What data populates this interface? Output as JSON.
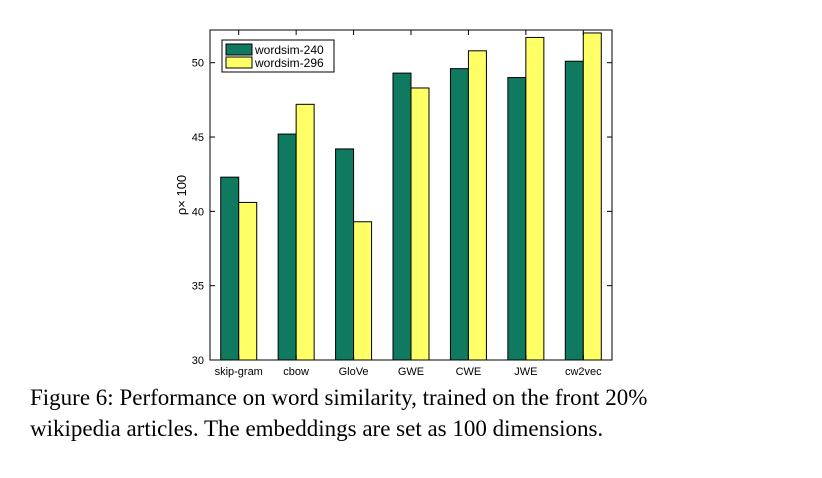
{
  "chart_data": {
    "type": "bar",
    "categories": [
      "skip-gram",
      "cbow",
      "GloVe",
      "GWE",
      "CWE",
      "JWE",
      "cw2vec"
    ],
    "series": [
      {
        "name": "wordsim-240",
        "color": "#0f7a60",
        "values": [
          42.3,
          45.2,
          44.2,
          49.3,
          49.6,
          49.0,
          50.1
        ]
      },
      {
        "name": "wordsim-296",
        "color": "#ffff66",
        "values": [
          40.6,
          47.2,
          39.3,
          48.3,
          50.8,
          51.7,
          52.0
        ]
      }
    ],
    "ylabel": "ρ× 100",
    "ylim": [
      30,
      52.2
    ],
    "yticks": [
      30,
      35,
      40,
      45,
      50
    ],
    "grid": false,
    "legend_position": "top-left"
  },
  "caption": {
    "line1": "Figure 6: Performance on word similarity, trained on the front 20%",
    "line2": "wikipedia articles. The embeddings are set as 100 dimensions."
  }
}
